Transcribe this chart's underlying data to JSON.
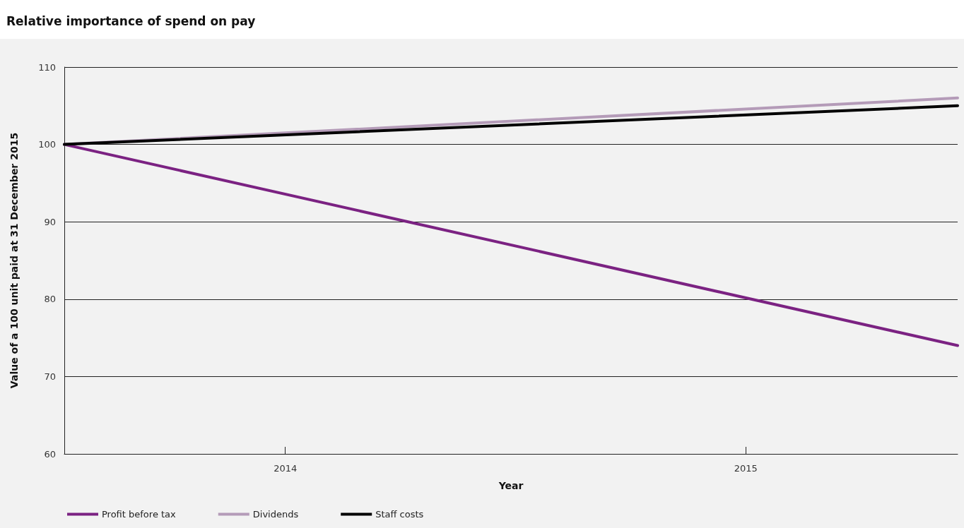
{
  "chart_data": {
    "type": "line",
    "title": "Relative importance of spend on pay",
    "xlabel": "Year",
    "ylabel": "Value of a 100 unit paid at 31 December 2015",
    "x": [
      2013.52,
      2015.46
    ],
    "xlim": [
      2013.52,
      2015.46
    ],
    "xticks": [
      2014,
      2015
    ],
    "ylim": [
      60,
      110
    ],
    "yticks": [
      60,
      70,
      80,
      90,
      100,
      110
    ],
    "grid": "y",
    "legend": "bottom left",
    "marker": "none",
    "line_style": "solid",
    "series": [
      {
        "name": "Profit before tax",
        "color": "#7b2282",
        "values": [
          100,
          74
        ]
      },
      {
        "name": "Dividends",
        "color": "#b49bb8",
        "values": [
          100,
          106
        ]
      },
      {
        "name": "Staff costs",
        "color": "#000000",
        "values": [
          100,
          105
        ]
      }
    ]
  }
}
